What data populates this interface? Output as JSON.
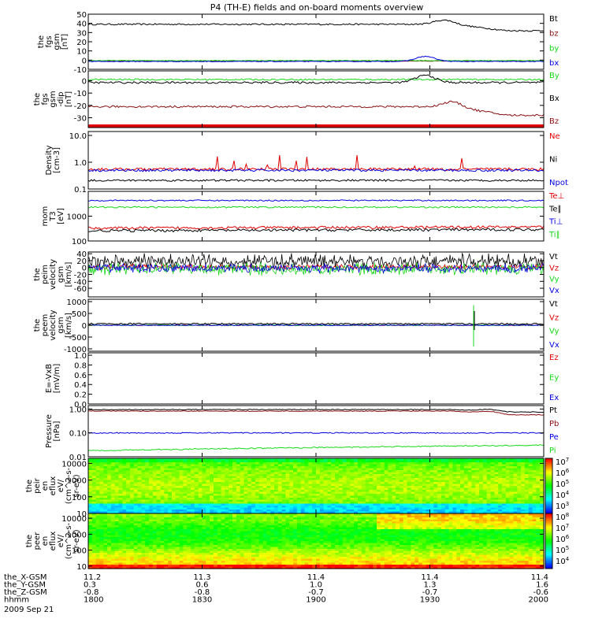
{
  "title": "P4 (TH-E) fields and on-board moments overview",
  "date_label": "2009 Sep 21",
  "colors": {
    "black": "#000000",
    "red": "#e00000",
    "green": "#18d818",
    "blue": "#0000e0",
    "brown": "#8b1010"
  },
  "chart_data": {
    "type": "line",
    "x_axis": {
      "quantity": "time",
      "ticks": [
        "1800",
        "1830",
        "1900",
        "1930",
        "2000"
      ],
      "range": [
        "18:00",
        "20:00"
      ],
      "orbit_rows": [
        {
          "label": "the_X-GSM",
          "values": [
            "11.2",
            "11.3",
            "11.4",
            "11.4",
            "11.4"
          ]
        },
        {
          "label": "the_Y-GSM",
          "values": [
            "0.3",
            "0.6",
            "1.0",
            "1.3",
            "1.6"
          ]
        },
        {
          "label": "the_Z-GSM",
          "values": [
            "-0.8",
            "-0.8",
            "-0.7",
            "-0.7",
            "-0.6"
          ]
        },
        {
          "label": "hhmm",
          "values": [
            "1800",
            "1830",
            "1900",
            "1930",
            "2000"
          ]
        }
      ]
    },
    "panels": [
      {
        "id": "fgs-gsm",
        "ylabel": [
          "the",
          "fgs",
          "gsm",
          "[nT]"
        ],
        "scale": "linear",
        "yrange": [
          -10,
          50
        ],
        "yticks": [
          "50",
          "40",
          "30",
          "20",
          "10",
          "0",
          "-10"
        ],
        "series": [
          {
            "name": "Bt",
            "color": "black",
            "level": 39,
            "amp": 0.8,
            "bump": 4.5,
            "bumpAt": 0.78,
            "endShift": -7
          },
          {
            "name": "bz",
            "color": "brown",
            "level": -1,
            "amp": 0.3
          },
          {
            "name": "by",
            "color": "green",
            "level": -0.5,
            "amp": 0.4
          },
          {
            "name": "bx",
            "color": "blue",
            "level": -1.5,
            "amp": 0.4,
            "bump": 5.5,
            "bumpAt": 0.74
          }
        ]
      },
      {
        "id": "fgs-gsm-dip",
        "ylabel": [
          "the",
          "fgs",
          "gsm",
          "-dip",
          "[nT]"
        ],
        "scale": "linear",
        "yrange": [
          -38,
          8
        ],
        "yticks": [
          "0",
          "-10",
          "-20",
          "-30"
        ],
        "redbar": true,
        "series": [
          {
            "name": "By",
            "color": "green",
            "level": 1,
            "amp": 0.6
          },
          {
            "name": "Bx",
            "color": "black",
            "level": -1.5,
            "amp": 0.8,
            "bump": 6,
            "bumpAt": 0.74
          },
          {
            "name": "Bz",
            "color": "brown",
            "level": -21,
            "amp": 0.8,
            "bump": 4,
            "bumpAt": 0.8,
            "endShift": -7
          }
        ]
      },
      {
        "id": "density",
        "ylabel": [
          "Density",
          "[cm-3]"
        ],
        "scale": "log",
        "yrange": [
          0.1,
          14
        ],
        "yticks": [
          "10.0",
          "1.0",
          "0.1"
        ],
        "series": [
          {
            "name": "Ne",
            "color": "red",
            "level": 0.55,
            "amp": 0.12,
            "spikes": 0.25
          },
          {
            "name": "Ni",
            "color": "black",
            "level": 0.21,
            "amp": 0.08
          },
          {
            "name": "Npot",
            "color": "blue",
            "level": 0.5,
            "amp": 0.1
          }
        ]
      },
      {
        "id": "temperature",
        "ylabel": [
          "mom",
          "T3",
          "[eV]"
        ],
        "scale": "log",
        "yrange": [
          100,
          10000
        ],
        "yticks": [
          "1000",
          "100"
        ],
        "series": [
          {
            "name": "Te⊥",
            "color": "red",
            "level": 330,
            "amp": 0.12,
            "trend": 0.12
          },
          {
            "name": "Te∥",
            "color": "black",
            "level": 260,
            "amp": 0.12,
            "trend": 0.12
          },
          {
            "name": "Ti⊥",
            "color": "blue",
            "level": 4300,
            "amp": 0.06
          },
          {
            "name": "Ti∥",
            "color": "green",
            "level": 2300,
            "amp": 0.07
          }
        ]
      },
      {
        "id": "peim-velocity",
        "ylabel": [
          "the",
          "peim",
          "velocity",
          "gsm",
          "[km/s]"
        ],
        "scale": "linear",
        "yrange": [
          -85,
          45
        ],
        "yticks": [
          "40",
          "20",
          "0",
          "-20",
          "-40",
          "-60"
        ],
        "noisy": true,
        "series": [
          {
            "name": "Vt",
            "color": "black",
            "level": 18,
            "amp": 16
          },
          {
            "name": "Vz",
            "color": "red",
            "level": 2,
            "amp": 6
          },
          {
            "name": "Vy",
            "color": "green",
            "level": -4,
            "amp": 14
          },
          {
            "name": "Vx",
            "color": "blue",
            "level": -2,
            "amp": 10
          }
        ]
      },
      {
        "id": "peem-velocity",
        "ylabel": [
          "the",
          "peem",
          "velocity",
          "gsm",
          "[km/s]"
        ],
        "scale": "linear",
        "yrange": [
          -1100,
          1100
        ],
        "yticks": [
          "1000",
          "500",
          "0",
          "-500",
          "-1000"
        ],
        "series": [
          {
            "name": "Vt",
            "color": "black",
            "level": 60,
            "amp": 30
          },
          {
            "name": "Vz",
            "color": "red",
            "level": 0,
            "amp": 15
          },
          {
            "name": "Vy",
            "color": "green",
            "level": 0,
            "amp": 20
          },
          {
            "name": "Vx",
            "color": "blue",
            "level": 0,
            "amp": 15
          }
        ]
      },
      {
        "id": "e-vxb",
        "ylabel": [
          "E=-VxB",
          "[mV/m]"
        ],
        "scale": "linear",
        "yrange": [
          0,
          1.05
        ],
        "yticks": [
          "1.0",
          "0.8",
          "0.6",
          "0.4",
          "0.2",
          "0.0"
        ],
        "series": [
          {
            "name": "Ez",
            "color": "red"
          },
          {
            "name": "Ey",
            "color": "green"
          },
          {
            "name": "Ex",
            "color": "blue"
          }
        ]
      },
      {
        "id": "pressure",
        "ylabel": [
          "Pressure",
          "[nPa]"
        ],
        "scale": "log",
        "yrange": [
          0.01,
          1.4
        ],
        "yticks": [
          "1.00",
          "0.10",
          "0.01"
        ],
        "series": [
          {
            "name": "Pt",
            "color": "black",
            "level": 0.95,
            "amp": 0.03,
            "bump": 0.15,
            "bumpAt": 0.88,
            "endShift": -0.2
          },
          {
            "name": "Pb",
            "color": "brown",
            "level": 0.82,
            "amp": 0.03,
            "bump": 0.15,
            "bumpAt": 0.88,
            "endShift": -0.25
          },
          {
            "name": "Pe",
            "color": "blue",
            "level": 0.1,
            "amp": 0.05
          },
          {
            "name": "Pi",
            "color": "green",
            "level": 0.018,
            "amp": 0.05,
            "trend": 0.7
          }
        ]
      },
      {
        "id": "peir-spectrogram",
        "ylabel": [
          "the",
          "peir",
          "en",
          "eflux",
          "eV/",
          "(cm^2-s-",
          "sr-eV)"
        ],
        "scale": "log",
        "yrange": [
          10,
          20000
        ],
        "yticks": [
          "10000",
          "1000",
          "100",
          "10"
        ],
        "spectrogram": "ion",
        "colorbar": {
          "ticks": [
            "10",
            "10",
            "10",
            "10",
            "10"
          ],
          "exps": [
            "7",
            "6",
            "5",
            "4",
            "3"
          ]
        }
      },
      {
        "id": "peer-spectrogram",
        "ylabel": [
          "the",
          "peer",
          "en",
          "eflux",
          "eV/",
          "(cm^2-s-",
          "sr-eV)"
        ],
        "scale": "log",
        "yrange": [
          7,
          20000
        ],
        "yticks": [
          "10000",
          "1000",
          "100",
          "10"
        ],
        "spectrogram": "electron",
        "colorbar": {
          "ticks": [
            "10",
            "10",
            "10",
            "10",
            "10"
          ],
          "exps": [
            "8",
            "7",
            "6",
            "5",
            "4"
          ]
        }
      }
    ]
  }
}
